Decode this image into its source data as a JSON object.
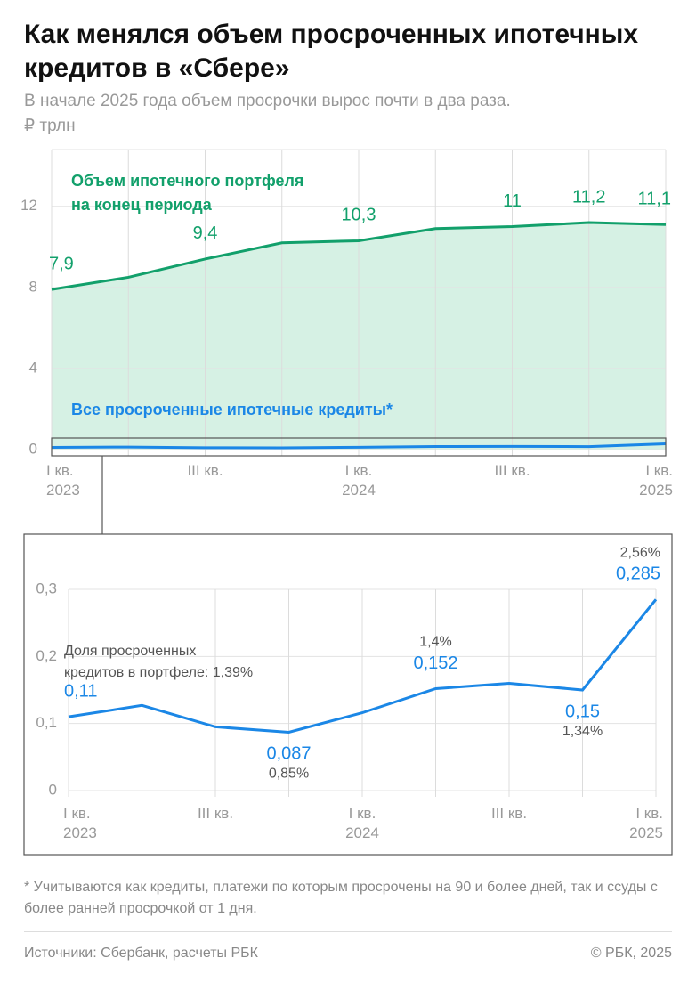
{
  "header": {
    "title": "Как менялся объем просроченных ипотечных кредитов в «Сбере»",
    "subtitle": "В начале 2025 года объем просрочки вырос почти в два раза.",
    "unit": "₽ трлн"
  },
  "chart_data": [
    {
      "type": "area",
      "categories": [
        "I кв.\n2023",
        null,
        "III кв.",
        null,
        "I кв.\n2024",
        null,
        "III кв.",
        null,
        "I кв.\n2025"
      ],
      "series": [
        {
          "name": "Объем ипотечного портфеля\nна конец периода",
          "color": "#12a06b",
          "values": [
            7.9,
            8.5,
            9.4,
            10.2,
            10.3,
            10.9,
            11,
            11.2,
            11.1
          ],
          "value_labels": [
            "7,9",
            null,
            "9,4",
            null,
            "10,3",
            null,
            "11",
            "11,2",
            "11,1"
          ]
        },
        {
          "name": "Все просроченные ипотечные кредиты*",
          "color": "#1b87e6",
          "values": [
            0.11,
            0.127,
            0.095,
            0.087,
            0.116,
            0.152,
            0.16,
            0.15,
            0.285
          ]
        }
      ],
      "ylim": [
        0,
        14.8
      ],
      "yticks": [
        0,
        4,
        8,
        12
      ],
      "grid": true
    },
    {
      "type": "line",
      "categories": [
        "I кв.\n2023",
        null,
        "III кв.",
        null,
        "I кв.\n2024",
        null,
        "III кв.",
        null,
        "I кв.\n2025"
      ],
      "series": [
        {
          "color": "#1b87e6",
          "values": [
            0.11,
            0.127,
            0.095,
            0.087,
            0.116,
            0.152,
            0.16,
            0.15,
            0.285
          ],
          "value_labels": [
            "0,11",
            null,
            null,
            "0,087",
            null,
            "0,152",
            null,
            "0,15",
            "0,285"
          ],
          "share_labels": [
            "Доля просроченных\nкредитов в портфеле: 1,39%",
            null,
            null,
            "0,85%",
            null,
            "1,4%",
            null,
            "1,34%",
            "2,56%"
          ]
        }
      ],
      "ylim": [
        0,
        0.3
      ],
      "yticks": [
        0,
        {
          "value": 0.1,
          "label": "0,1"
        },
        {
          "value": 0.2,
          "label": "0,2"
        },
        {
          "value": 0.3,
          "label": "0,3"
        }
      ],
      "grid": true
    }
  ],
  "footnote": "* Учитываются как кредиты, платежи по которым просрочены на 90 и более дней, так и ссуды с более ранней просрочкой от 1 дня.",
  "footer": {
    "source": "Источники: Сбербанк, расчеты РБК",
    "copyright": "© РБК, 2025"
  }
}
